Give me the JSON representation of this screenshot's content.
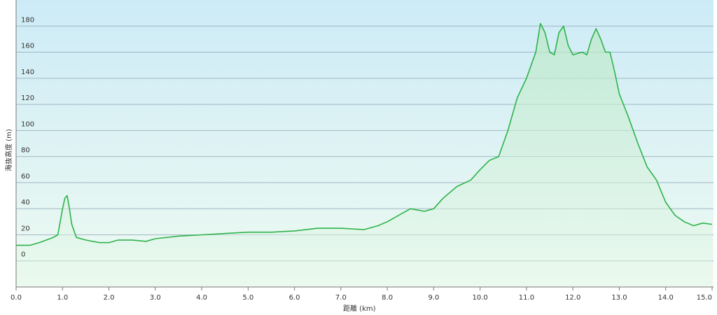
{
  "chart_data": {
    "type": "area",
    "title": "",
    "xlabel": "距離 (km)",
    "ylabel": "海抜高度 (m)",
    "xlim": [
      0,
      15
    ],
    "ylim": [
      -20,
      200
    ],
    "grid": true,
    "x_ticks": [
      "0.0",
      "1.0",
      "2.0",
      "3.0",
      "4.0",
      "5.0",
      "6.0",
      "7.0",
      "8.0",
      "9.0",
      "10.0",
      "11.0",
      "12.0",
      "13.0",
      "14.0",
      "15.0"
    ],
    "y_ticks": [
      "0",
      "20",
      "40",
      "60",
      "80",
      "100",
      "120",
      "140",
      "160",
      "180"
    ],
    "colors": {
      "line": "#2db34a",
      "fill": "#b9e8c4",
      "bg_top": "#cdebf7",
      "bg_bottom": "#eefaf1"
    },
    "x": [
      0.0,
      0.3,
      0.5,
      0.8,
      0.9,
      1.0,
      1.05,
      1.1,
      1.15,
      1.2,
      1.3,
      1.5,
      1.8,
      2.0,
      2.2,
      2.5,
      2.8,
      3.0,
      3.5,
      4.0,
      4.5,
      5.0,
      5.5,
      6.0,
      6.5,
      7.0,
      7.5,
      7.8,
      8.0,
      8.3,
      8.5,
      8.8,
      9.0,
      9.2,
      9.5,
      9.8,
      10.0,
      10.2,
      10.4,
      10.6,
      10.8,
      11.0,
      11.2,
      11.3,
      11.4,
      11.5,
      11.6,
      11.7,
      11.8,
      11.9,
      12.0,
      12.2,
      12.3,
      12.4,
      12.5,
      12.6,
      12.7,
      12.8,
      12.9,
      13.0,
      13.2,
      13.4,
      13.6,
      13.8,
      14.0,
      14.2,
      14.4,
      14.6,
      14.8,
      15.0
    ],
    "y": [
      12,
      12,
      14,
      18,
      20,
      40,
      48,
      50,
      40,
      28,
      18,
      16,
      14,
      14,
      16,
      16,
      15,
      17,
      19,
      20,
      21,
      22,
      22,
      23,
      25,
      25,
      24,
      27,
      30,
      36,
      40,
      38,
      40,
      48,
      57,
      62,
      70,
      77,
      80,
      100,
      125,
      140,
      160,
      182,
      175,
      160,
      158,
      175,
      180,
      165,
      158,
      160,
      158,
      170,
      178,
      170,
      160,
      160,
      145,
      128,
      110,
      90,
      72,
      62,
      45,
      35,
      30,
      27,
      29,
      28
    ]
  }
}
